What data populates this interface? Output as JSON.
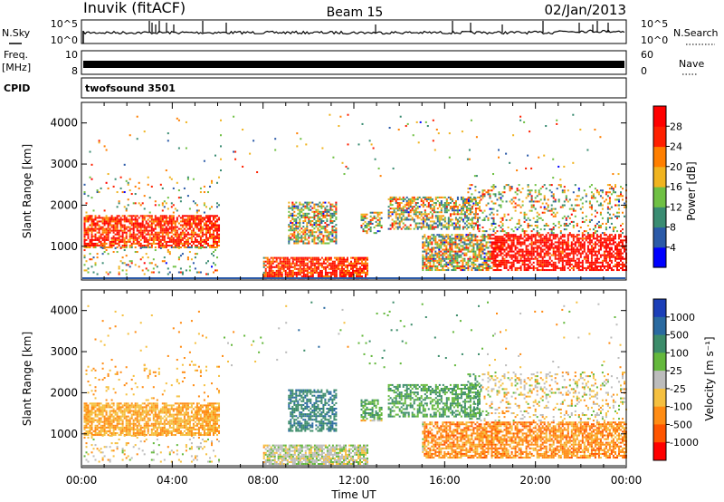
{
  "header": {
    "station": "Inuvik (fitACF)",
    "beam": "Beam 15",
    "date": "02/Jan/2013",
    "cpid_text": "twofsound 3501"
  },
  "labels": {
    "nsky": "N.Sky",
    "freq": "Freq.",
    "mhz": "[MHz]",
    "cpid": "CPID",
    "nsearch": "N.Search",
    "nave": "Nave",
    "slant_range": "Slant Range [km]",
    "time_ut": "Time UT",
    "power": "Power [dB]",
    "velocity": "Velocity [m s⁻¹]"
  },
  "chart_data": [
    {
      "type": "line",
      "name": "noise-panel",
      "left_ticks": [
        "10^5",
        "10^0"
      ],
      "right_ticks": [
        "10^5",
        "10^0"
      ]
    },
    {
      "type": "line",
      "name": "frequency-panel",
      "left_ticks": [
        "10",
        "8"
      ],
      "right_ticks": [
        "60",
        "0"
      ]
    },
    {
      "type": "heatmap",
      "name": "power-panel",
      "xlabel": "",
      "ylabel": "Slant Range [km]",
      "xlim": [
        0,
        24
      ],
      "ylim": [
        180,
        4500
      ],
      "y_ticks": [
        1000,
        2000,
        3000,
        4000
      ],
      "colorbar": {
        "label": "Power [dB]",
        "ticks": [
          "4",
          "8",
          "12",
          "16",
          "20",
          "24",
          "28"
        ],
        "colors": [
          "#0000ff",
          "#2b5aa8",
          "#3a8c72",
          "#6fc044",
          "#f0b420",
          "#ff7f00",
          "#ff2000",
          "#ff0000"
        ]
      }
    },
    {
      "type": "heatmap",
      "name": "velocity-panel",
      "xlabel": "Time UT",
      "ylabel": "Slant Range [km]",
      "xlim": [
        0,
        24
      ],
      "ylim": [
        180,
        4500
      ],
      "y_ticks": [
        1000,
        2000,
        3000,
        4000
      ],
      "x_ticks": [
        "00:00",
        "04:00",
        "08:00",
        "12:00",
        "16:00",
        "20:00",
        "00:00"
      ],
      "colorbar": {
        "label": "Velocity [m s⁻¹]",
        "ticks": [
          "1000",
          "500",
          "100",
          "25",
          "-25",
          "-100",
          "-500",
          "-1000"
        ],
        "colors": [
          "#1c3fb8",
          "#2a6aa0",
          "#3c8c6a",
          "#64b83c",
          "#bcbcbc",
          "#f5c040",
          "#ff8c14",
          "#ff5500",
          "#ff0000"
        ]
      }
    }
  ]
}
